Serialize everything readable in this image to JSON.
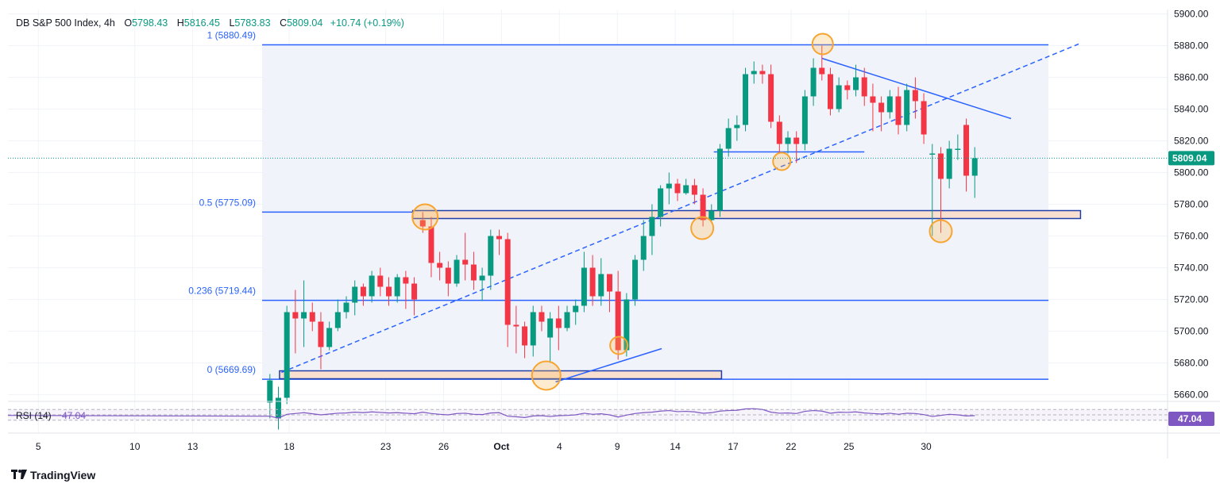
{
  "header": {
    "symbol": "DB S&P 500 Index, 4h",
    "o_label": "O",
    "o_value": "5798.43",
    "h_label": "H",
    "h_value": "5816.45",
    "l_label": "L",
    "l_value": "5783.83",
    "c_label": "C",
    "c_value": "5809.04",
    "change": "+10.74 (+0.19%)"
  },
  "brand": {
    "name": "TradingView",
    "logo": "tradingview-logo"
  },
  "colors": {
    "up": "#089981",
    "down": "#f23645",
    "line": "#2962ff",
    "fib_text": "#2962ff",
    "zone_fill": "#f8dfd0",
    "zone_stroke": "#1e3fa8",
    "marker": "#f7a530",
    "rsi": "#7e57c2"
  },
  "chart_data": {
    "type": "candlestick",
    "y_ticks": [
      "5900.00",
      "5880.00",
      "5860.00",
      "5840.00",
      "5820.00",
      "5800.00",
      "5780.00",
      "5760.00",
      "5740.00",
      "5720.00",
      "5700.00",
      "5680.00",
      "5660.00"
    ],
    "ylim": [
      5658,
      5900
    ],
    "x_ticks": [
      {
        "label": "5",
        "x": 5
      },
      {
        "label": "10",
        "x": 10
      },
      {
        "label": "13",
        "x": 13
      },
      {
        "label": "18",
        "x": 18
      },
      {
        "label": "23",
        "x": 23
      },
      {
        "label": "26",
        "x": 26
      },
      {
        "label": "Oct",
        "x": 29
      },
      {
        "label": "4",
        "x": 32
      },
      {
        "label": "9",
        "x": 35
      },
      {
        "label": "14",
        "x": 38
      },
      {
        "label": "17",
        "x": 41
      },
      {
        "label": "22",
        "x": 44
      },
      {
        "label": "25",
        "x": 47
      },
      {
        "label": "30",
        "x": 51
      }
    ],
    "last_price": "5809.04",
    "candles": [
      [
        17.0,
        5655,
        5669,
        5645,
        5673
      ],
      [
        17.44,
        5645,
        5658,
        5638,
        5665
      ],
      [
        17.88,
        5658,
        5712,
        5654,
        5716
      ],
      [
        18.32,
        5712,
        5708,
        5686,
        5726
      ],
      [
        18.76,
        5708,
        5712,
        5690,
        5732
      ],
      [
        19.2,
        5712,
        5706,
        5700,
        5718
      ],
      [
        19.64,
        5706,
        5690,
        5676,
        5712
      ],
      [
        20.08,
        5690,
        5702,
        5688,
        5706
      ],
      [
        20.52,
        5702,
        5712,
        5700,
        5720
      ],
      [
        20.96,
        5712,
        5718,
        5708,
        5722
      ],
      [
        21.4,
        5718,
        5728,
        5710,
        5732
      ],
      [
        21.84,
        5728,
        5722,
        5716,
        5730
      ],
      [
        22.28,
        5722,
        5735,
        5718,
        5738
      ],
      [
        22.72,
        5735,
        5728,
        5722,
        5740
      ],
      [
        23.16,
        5728,
        5722,
        5716,
        5734
      ],
      [
        23.6,
        5722,
        5734,
        5718,
        5736
      ],
      [
        24.04,
        5734,
        5730,
        5714,
        5738
      ],
      [
        24.48,
        5730,
        5720,
        5710,
        5734
      ],
      [
        24.92,
        5770,
        5766,
        5762,
        5775
      ],
      [
        25.36,
        5766,
        5743,
        5734,
        5772
      ],
      [
        25.8,
        5743,
        5740,
        5732,
        5750
      ],
      [
        26.24,
        5740,
        5730,
        5722,
        5744
      ],
      [
        26.68,
        5730,
        5745,
        5728,
        5748
      ],
      [
        27.12,
        5745,
        5742,
        5732,
        5762
      ],
      [
        27.56,
        5742,
        5732,
        5726,
        5750
      ],
      [
        28.0,
        5732,
        5735,
        5719,
        5740
      ],
      [
        28.44,
        5735,
        5760,
        5726,
        5764
      ],
      [
        28.88,
        5760,
        5758,
        5748,
        5764
      ],
      [
        29.32,
        5758,
        5704,
        5690,
        5762
      ],
      [
        29.76,
        5704,
        5703,
        5686,
        5716
      ],
      [
        30.2,
        5703,
        5691,
        5683,
        5706
      ],
      [
        30.64,
        5691,
        5712,
        5684,
        5716
      ],
      [
        31.08,
        5712,
        5706,
        5700,
        5716
      ],
      [
        31.52,
        5696,
        5708,
        5680,
        5712
      ],
      [
        31.96,
        5708,
        5702,
        5688,
        5716
      ],
      [
        32.4,
        5702,
        5712,
        5700,
        5716
      ],
      [
        32.84,
        5712,
        5716,
        5704,
        5720
      ],
      [
        33.28,
        5716,
        5740,
        5712,
        5750
      ],
      [
        33.72,
        5740,
        5722,
        5716,
        5748
      ],
      [
        34.16,
        5722,
        5736,
        5716,
        5746
      ],
      [
        34.6,
        5736,
        5725,
        5712,
        5736
      ],
      [
        35.04,
        5725,
        5688,
        5682,
        5738
      ],
      [
        35.48,
        5688,
        5720,
        5684,
        5724
      ],
      [
        35.92,
        5720,
        5745,
        5716,
        5748
      ],
      [
        36.36,
        5745,
        5760,
        5738,
        5770
      ],
      [
        36.8,
        5760,
        5772,
        5748,
        5780
      ],
      [
        37.24,
        5772,
        5790,
        5766,
        5792
      ],
      [
        37.68,
        5790,
        5793,
        5780,
        5800
      ],
      [
        38.12,
        5793,
        5787,
        5782,
        5796
      ],
      [
        38.56,
        5787,
        5792,
        5786,
        5796
      ],
      [
        39.0,
        5792,
        5786,
        5780,
        5796
      ],
      [
        39.44,
        5786,
        5770,
        5766,
        5790
      ],
      [
        39.88,
        5770,
        5776,
        5768,
        5780
      ],
      [
        40.32,
        5776,
        5815,
        5772,
        5818
      ],
      [
        40.76,
        5815,
        5828,
        5810,
        5834
      ],
      [
        41.2,
        5828,
        5830,
        5820,
        5836
      ],
      [
        41.64,
        5830,
        5862,
        5826,
        5866
      ],
      [
        42.08,
        5862,
        5864,
        5856,
        5870
      ],
      [
        42.52,
        5864,
        5862,
        5856,
        5868
      ],
      [
        42.96,
        5862,
        5832,
        5828,
        5868
      ],
      [
        43.4,
        5832,
        5818,
        5812,
        5836
      ],
      [
        43.84,
        5818,
        5822,
        5812,
        5826
      ],
      [
        44.28,
        5822,
        5818,
        5806,
        5826
      ],
      [
        44.72,
        5818,
        5848,
        5814,
        5852
      ],
      [
        45.16,
        5848,
        5866,
        5842,
        5872
      ],
      [
        45.6,
        5866,
        5862,
        5858,
        5880
      ],
      [
        46.04,
        5862,
        5840,
        5836,
        5866
      ],
      [
        46.48,
        5840,
        5855,
        5838,
        5860
      ],
      [
        46.92,
        5855,
        5852,
        5846,
        5858
      ],
      [
        47.36,
        5852,
        5860,
        5848,
        5868
      ],
      [
        47.8,
        5860,
        5848,
        5842,
        5866
      ],
      [
        48.24,
        5848,
        5844,
        5826,
        5856
      ],
      [
        48.68,
        5844,
        5838,
        5826,
        5848
      ],
      [
        49.12,
        5838,
        5848,
        5834,
        5852
      ],
      [
        49.56,
        5848,
        5830,
        5824,
        5854
      ],
      [
        50.0,
        5830,
        5852,
        5826,
        5856
      ],
      [
        50.44,
        5852,
        5845,
        5834,
        5860
      ],
      [
        50.88,
        5845,
        5824,
        5818,
        5850
      ],
      [
        51.32,
        5812,
        5812,
        5760,
        5818
      ],
      [
        51.76,
        5812,
        5796,
        5762,
        5816
      ],
      [
        52.2,
        5796,
        5815,
        5790,
        5820
      ],
      [
        52.64,
        5815,
        5815,
        5808,
        5824
      ],
      [
        53.08,
        5830,
        5798,
        5788,
        5834
      ],
      [
        53.52,
        5798,
        5809,
        5784,
        5816
      ]
    ],
    "fib_levels": [
      {
        "label": "1 (5880.49)",
        "value": 5880.49
      },
      {
        "label": "0.5 (5775.09)",
        "value": 5775.09
      },
      {
        "label": "0.236 (5719.44)",
        "value": 5719.44
      },
      {
        "label": "0 (5669.69)",
        "value": 5669.69
      }
    ],
    "zones": [
      {
        "x1": 24.4,
        "x2": 59.0,
        "y1": 5771,
        "y2": 5776
      },
      {
        "x1": 17.5,
        "x2": 40.4,
        "y1": 5670,
        "y2": 5675
      }
    ],
    "trendlines": [
      {
        "style": "dashed",
        "x1": 17.6,
        "y1": 5674,
        "x2": 58.9,
        "y2": 5881
      },
      {
        "style": "solid",
        "x1": 45.6,
        "y1": 5872,
        "x2": 55.4,
        "y2": 5834
      },
      {
        "style": "solid",
        "x1": 31.8,
        "y1": 5668,
        "x2": 37.3,
        "y2": 5689
      },
      {
        "style": "solid",
        "x1": 40.0,
        "y1": 5813,
        "x2": 47.8,
        "y2": 5813
      }
    ],
    "markers": [
      {
        "x": 25.04,
        "y": 5772,
        "r": 16
      },
      {
        "x": 31.32,
        "y": 5672,
        "r": 18
      },
      {
        "x": 35.08,
        "y": 5691,
        "r": 11
      },
      {
        "x": 39.4,
        "y": 5765,
        "r": 14
      },
      {
        "x": 43.52,
        "y": 5807,
        "r": 11
      },
      {
        "x": 45.64,
        "y": 5881,
        "r": 13
      },
      {
        "x": 51.76,
        "y": 5763,
        "r": 14
      }
    ],
    "rsi": {
      "label": "RSI (14)",
      "value": "47.04",
      "ylim": [
        0,
        100
      ],
      "band": [
        30,
        70
      ],
      "values": [
        45,
        38,
        52,
        55,
        58,
        54,
        50,
        53,
        56,
        57,
        60,
        58,
        61,
        59,
        57,
        58,
        56,
        54,
        60,
        55,
        52,
        50,
        55,
        56,
        52,
        51,
        57,
        58,
        45,
        43,
        40,
        46,
        47,
        44,
        47,
        48,
        50,
        56,
        52,
        54,
        50,
        42,
        49,
        55,
        58,
        60,
        64,
        66,
        62,
        63,
        61,
        56,
        58,
        64,
        66,
        67,
        72,
        73,
        70,
        60,
        56,
        57,
        55,
        63,
        66,
        64,
        56,
        60,
        59,
        61,
        57,
        55,
        53,
        56,
        52,
        56,
        55,
        51,
        44,
        48,
        52,
        50,
        46,
        47
      ]
    }
  }
}
